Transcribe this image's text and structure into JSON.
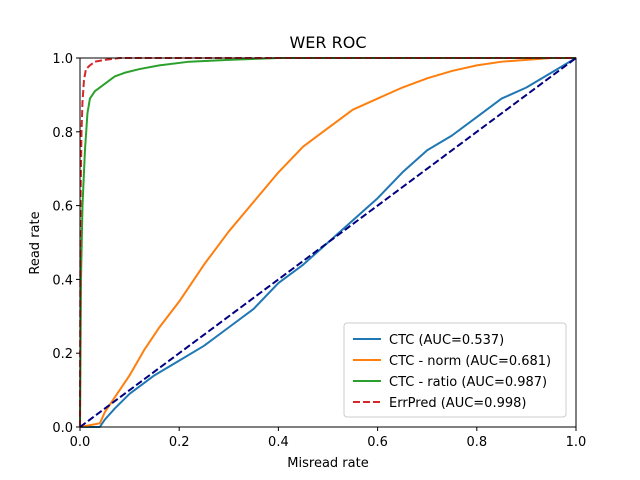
{
  "chart_data": {
    "type": "line",
    "title": "WER ROC",
    "xlabel": "Misread rate",
    "ylabel": "Read rate",
    "xlim": [
      0.0,
      1.0
    ],
    "ylim": [
      0.0,
      1.0
    ],
    "xticks": [
      "0.0",
      "0.2",
      "0.4",
      "0.6",
      "0.8",
      "1.0"
    ],
    "yticks": [
      "0.0",
      "0.2",
      "0.4",
      "0.6",
      "0.8",
      "1.0"
    ],
    "grid": false,
    "legend_position": "lower-right",
    "series": [
      {
        "name": "CTC (AUC=0.537)",
        "color": "#1f77b4",
        "dash": "solid",
        "x": [
          0.0,
          0.04,
          0.05,
          0.07,
          0.1,
          0.15,
          0.2,
          0.25,
          0.3,
          0.35,
          0.4,
          0.45,
          0.5,
          0.55,
          0.6,
          0.65,
          0.7,
          0.75,
          0.8,
          0.85,
          0.9,
          0.95,
          1.0
        ],
        "y": [
          0.0,
          0.0,
          0.02,
          0.05,
          0.09,
          0.14,
          0.18,
          0.22,
          0.27,
          0.32,
          0.39,
          0.44,
          0.5,
          0.56,
          0.62,
          0.69,
          0.75,
          0.79,
          0.84,
          0.89,
          0.92,
          0.96,
          1.0
        ]
      },
      {
        "name": "CTC - norm (AUC=0.681)",
        "color": "#ff7f0e",
        "dash": "solid",
        "x": [
          0.0,
          0.04,
          0.05,
          0.08,
          0.1,
          0.13,
          0.16,
          0.2,
          0.25,
          0.3,
          0.35,
          0.4,
          0.45,
          0.5,
          0.55,
          0.6,
          0.65,
          0.7,
          0.75,
          0.8,
          0.85,
          0.9,
          0.95,
          1.0
        ],
        "y": [
          0.0,
          0.01,
          0.04,
          0.1,
          0.14,
          0.21,
          0.27,
          0.34,
          0.44,
          0.53,
          0.61,
          0.69,
          0.76,
          0.81,
          0.86,
          0.89,
          0.92,
          0.945,
          0.965,
          0.98,
          0.99,
          0.995,
          1.0,
          1.0
        ]
      },
      {
        "name": "CTC - ratio (AUC=0.987)",
        "color": "#2ca02c",
        "dash": "solid",
        "x": [
          0.0,
          0.002,
          0.005,
          0.01,
          0.015,
          0.02,
          0.03,
          0.05,
          0.07,
          0.09,
          0.12,
          0.16,
          0.22,
          0.3,
          0.4,
          0.5,
          0.6,
          0.8,
          1.0
        ],
        "y": [
          0.0,
          0.4,
          0.6,
          0.75,
          0.85,
          0.89,
          0.91,
          0.93,
          0.95,
          0.96,
          0.97,
          0.98,
          0.99,
          0.995,
          1.0,
          1.0,
          1.0,
          1.0,
          1.0
        ]
      },
      {
        "name": "ErrPred (AUC=0.998)",
        "color": "#d62728",
        "dash": "dashed",
        "x": [
          0.0,
          0.001,
          0.003,
          0.005,
          0.008,
          0.012,
          0.02,
          0.03,
          0.05,
          0.08,
          0.12,
          0.2,
          0.4,
          1.0
        ],
        "y": [
          0.0,
          0.6,
          0.8,
          0.88,
          0.94,
          0.97,
          0.98,
          0.99,
          0.995,
          1.0,
          1.0,
          1.0,
          1.0,
          1.0
        ]
      },
      {
        "name": "",
        "color": "#000080",
        "dash": "dashed",
        "x": [
          0.0,
          1.0
        ],
        "y": [
          0.0,
          1.0
        ]
      }
    ]
  }
}
